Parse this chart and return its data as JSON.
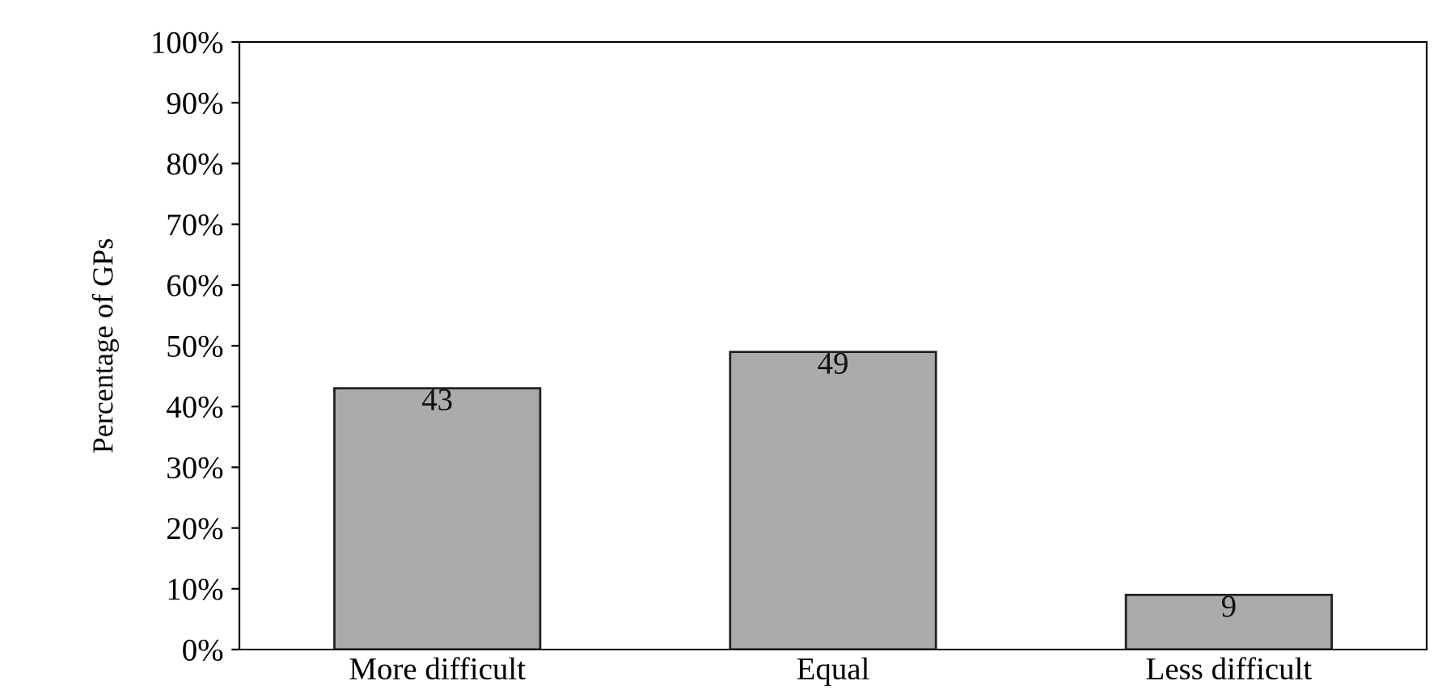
{
  "chart_data": {
    "type": "bar",
    "ylabel": "Percentage of GPs",
    "categories": [
      "More difficult",
      "Equal",
      "Less difficult"
    ],
    "values": [
      43,
      49,
      9
    ],
    "color": "#ababab",
    "data_labels": true,
    "ylim": [
      0,
      100
    ],
    "yticks": [
      {
        "value": 0,
        "label": "0%"
      },
      {
        "value": 10,
        "label": "10%"
      },
      {
        "value": 20,
        "label": "20%"
      },
      {
        "value": 30,
        "label": "30%"
      },
      {
        "value": 40,
        "label": "40%"
      },
      {
        "value": 50,
        "label": "50%"
      },
      {
        "value": 60,
        "label": "60%"
      },
      {
        "value": 70,
        "label": "70%"
      },
      {
        "value": 80,
        "label": "80%"
      },
      {
        "value": 90,
        "label": "90%"
      },
      {
        "value": 100,
        "label": "100%"
      }
    ],
    "grid": false
  }
}
